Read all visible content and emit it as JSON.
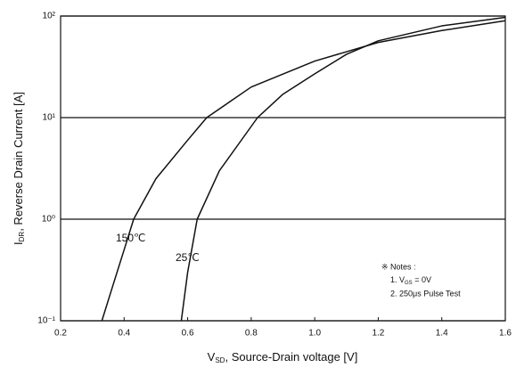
{
  "chart_data": {
    "type": "line",
    "x_label": [
      "V",
      "SD",
      ", Source-Drain voltage [V]"
    ],
    "y_label": [
      "I",
      "DR",
      ", Reverse Drain Current [A]"
    ],
    "xlim": [
      0.2,
      1.6
    ],
    "xticks": [
      0.2,
      0.4,
      0.6,
      0.8,
      {
        "value": 1,
        "label": "1.0"
      },
      1.2,
      1.4,
      1.6
    ],
    "ylim": [
      0.1,
      100
    ],
    "yticks": [
      {
        "value": 0.1,
        "label": "10⁻¹"
      },
      {
        "value": 1,
        "label": "10⁰"
      },
      {
        "value": 10,
        "label": "10¹"
      },
      {
        "value": 100,
        "label": "10²"
      }
    ],
    "log_y": true,
    "grid": "y",
    "series": [
      {
        "name": "150℃",
        "color": "#111111",
        "x": [
          0.33,
          0.36,
          0.4,
          0.43,
          0.5,
          0.6,
          0.66,
          0.8,
          1.0,
          1.2,
          1.4,
          1.6
        ],
        "values": [
          0.1,
          0.2,
          0.5,
          1,
          2.5,
          6,
          10,
          20,
          36,
          55,
          72,
          90
        ]
      },
      {
        "name": "25℃",
        "color": "#111111",
        "x": [
          0.58,
          0.6,
          0.63,
          0.7,
          0.82,
          0.9,
          1.0,
          1.1,
          1.2,
          1.4,
          1.6
        ],
        "values": [
          0.1,
          0.3,
          1,
          3,
          10,
          17,
          27,
          42,
          57,
          80,
          97
        ]
      }
    ],
    "notes": {
      "title": "※ Notes :",
      "line1": [
        "1. V",
        "GS",
        " = 0V"
      ],
      "line2": "2. 250μs Pulse Test"
    }
  }
}
